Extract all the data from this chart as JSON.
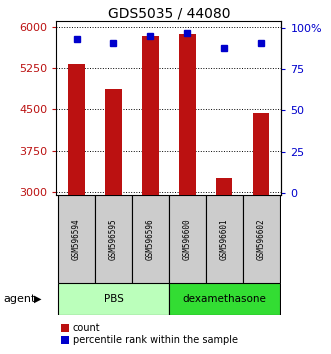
{
  "title": "GDS5035 / 44080",
  "samples": [
    "GSM596594",
    "GSM596595",
    "GSM596596",
    "GSM596600",
    "GSM596601",
    "GSM596602"
  ],
  "counts": [
    5320,
    4870,
    5840,
    5870,
    3250,
    4430
  ],
  "percentiles": [
    93,
    91,
    95,
    97,
    88,
    91
  ],
  "ylim_left": [
    2950,
    6100
  ],
  "ylim_right": [
    -1,
    104
  ],
  "yticks_left": [
    3000,
    3750,
    4500,
    5250,
    6000
  ],
  "yticks_right": [
    0,
    25,
    50,
    75,
    100
  ],
  "yticklabels_right": [
    "0",
    "25",
    "50",
    "75",
    "100%"
  ],
  "bar_color": "#bb1111",
  "dot_color": "#0000cc",
  "agent_groups": [
    {
      "label": "PBS",
      "indices": [
        0,
        1,
        2
      ],
      "color": "#bbffbb"
    },
    {
      "label": "dexamethasone",
      "indices": [
        3,
        4,
        5
      ],
      "color": "#33dd33"
    }
  ],
  "agent_label": "agent",
  "legend_count": "count",
  "legend_percentile": "percentile rank within the sample",
  "sample_box_color": "#cccccc",
  "background_color": "#ffffff",
  "bar_bottom": 2950
}
